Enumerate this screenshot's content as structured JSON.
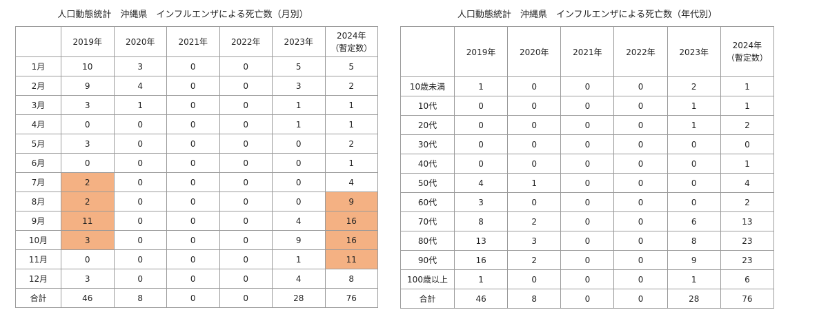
{
  "left": {
    "title": "人口動態統計　沖縄県　インフルエンザによる死亡数（月別）",
    "headers": [
      "",
      "2019年",
      "2020年",
      "2021年",
      "2022年",
      "2023年",
      "2024年",
      "（暫定数）"
    ],
    "rows": [
      [
        "1月",
        "10",
        "3",
        "0",
        "0",
        "5",
        "5"
      ],
      [
        "2月",
        "9",
        "4",
        "0",
        "0",
        "3",
        "2"
      ],
      [
        "3月",
        "3",
        "1",
        "0",
        "0",
        "1",
        "1"
      ],
      [
        "4月",
        "0",
        "0",
        "0",
        "0",
        "1",
        "1"
      ],
      [
        "5月",
        "3",
        "0",
        "0",
        "0",
        "0",
        "2"
      ],
      [
        "6月",
        "0",
        "0",
        "0",
        "0",
        "0",
        "1"
      ],
      [
        "7月",
        "2",
        "0",
        "0",
        "0",
        "0",
        "4"
      ],
      [
        "8月",
        "2",
        "0",
        "0",
        "0",
        "0",
        "9"
      ],
      [
        "9月",
        "11",
        "0",
        "0",
        "0",
        "4",
        "16"
      ],
      [
        "10月",
        "3",
        "0",
        "0",
        "0",
        "9",
        "16"
      ],
      [
        "11月",
        "0",
        "0",
        "0",
        "0",
        "1",
        "11"
      ],
      [
        "12月",
        "3",
        "0",
        "0",
        "0",
        "4",
        "8"
      ],
      [
        "合計",
        "46",
        "8",
        "0",
        "0",
        "28",
        "76"
      ]
    ],
    "highlight_color": "#f4b183"
  },
  "right": {
    "title": "人口動態統計　沖縄県　インフルエンザによる死亡数（年代別）",
    "headers": [
      "",
      "2019年",
      "2020年",
      "2021年",
      "2022年",
      "2023年",
      "2024年",
      "（暫定数）"
    ],
    "rows": [
      [
        "10歳未満",
        "1",
        "0",
        "0",
        "0",
        "2",
        "1"
      ],
      [
        "10代",
        "0",
        "0",
        "0",
        "0",
        "1",
        "1"
      ],
      [
        "20代",
        "0",
        "0",
        "0",
        "0",
        "1",
        "2"
      ],
      [
        "30代",
        "0",
        "0",
        "0",
        "0",
        "0",
        "0"
      ],
      [
        "40代",
        "0",
        "0",
        "0",
        "0",
        "0",
        "1"
      ],
      [
        "50代",
        "4",
        "1",
        "0",
        "0",
        "0",
        "4"
      ],
      [
        "60代",
        "3",
        "0",
        "0",
        "0",
        "0",
        "2"
      ],
      [
        "70代",
        "8",
        "2",
        "0",
        "0",
        "6",
        "13"
      ],
      [
        "80代",
        "13",
        "3",
        "0",
        "0",
        "8",
        "23"
      ],
      [
        "90代",
        "16",
        "2",
        "0",
        "0",
        "9",
        "23"
      ],
      [
        "100歳以上",
        "1",
        "0",
        "0",
        "0",
        "1",
        "6"
      ],
      [
        "合計",
        "46",
        "8",
        "0",
        "0",
        "28",
        "76"
      ]
    ]
  }
}
